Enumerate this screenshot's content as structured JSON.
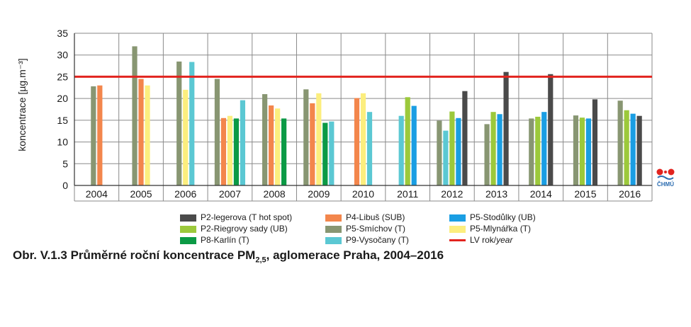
{
  "chart_data": {
    "type": "bar",
    "title": "",
    "ylabel": "koncentrace [µg.m⁻³]",
    "xlabel": "",
    "ylim": [
      0,
      35
    ],
    "yticks": [
      0,
      5,
      10,
      15,
      20,
      25,
      30,
      35
    ],
    "grid": true,
    "legend_position": "bottom",
    "categories": [
      "2004",
      "2005",
      "2006",
      "2007",
      "2008",
      "2009",
      "2010",
      "2011",
      "2012",
      "2013",
      "2014",
      "2015",
      "2016"
    ],
    "series": [
      {
        "name": "P5-Smíchov (T)",
        "color": "#889672",
        "values": [
          22.8,
          32.0,
          28.5,
          24.5,
          21.0,
          22.1,
          null,
          null,
          14.9,
          14.1,
          15.4,
          16.1,
          19.5
        ]
      },
      {
        "name": "P4-Libuš (SUB)",
        "color": "#f3864c",
        "values": [
          23.0,
          24.5,
          null,
          15.5,
          18.4,
          18.9,
          20.1,
          null,
          null,
          null,
          null,
          null,
          null
        ]
      },
      {
        "name": "P5-Mlynářka (T)",
        "color": "#fcee7e",
        "values": [
          null,
          23.0,
          22.0,
          16.0,
          17.7,
          21.2,
          21.2,
          null,
          null,
          null,
          null,
          null,
          null
        ]
      },
      {
        "name": "P8-Karlín (T)",
        "color": "#0b9a45",
        "values": [
          null,
          null,
          null,
          15.4,
          15.4,
          14.4,
          null,
          null,
          null,
          null,
          null,
          null,
          null
        ]
      },
      {
        "name": "P9-Vysočany (T)",
        "color": "#5bc8d3",
        "values": [
          null,
          null,
          28.4,
          19.6,
          null,
          14.7,
          16.9,
          16.0,
          12.6,
          null,
          null,
          null,
          null
        ]
      },
      {
        "name": "P2-Riegrovy sady (UB)",
        "color": "#9cc93b",
        "values": [
          null,
          null,
          null,
          null,
          null,
          null,
          null,
          20.3,
          17.0,
          16.9,
          15.8,
          15.6,
          17.3
        ]
      },
      {
        "name": "P5-Stodůlky (UB)",
        "color": "#1a9ee3",
        "values": [
          null,
          null,
          null,
          null,
          null,
          null,
          null,
          18.3,
          15.5,
          16.4,
          16.9,
          15.4,
          16.5
        ]
      },
      {
        "name": "P2-legerova (T hot spot)",
        "color": "#4a4a4a",
        "values": [
          null,
          null,
          null,
          null,
          null,
          null,
          null,
          null,
          21.7,
          26.1,
          25.6,
          19.8,
          16.0
        ]
      }
    ],
    "annotations": [
      {
        "label": "LV rok/year",
        "y": 25,
        "color": "#e2241f"
      }
    ]
  },
  "legend": [
    {
      "label": "P2-legerova (T hot spot)",
      "color": "#4a4a4a",
      "kind": "box"
    },
    {
      "label": "P4-Libuš (SUB)",
      "color": "#f3864c",
      "kind": "box"
    },
    {
      "label": "P5-Stodůlky (UB)",
      "color": "#1a9ee3",
      "kind": "box"
    },
    {
      "label": "P2-Riegrovy sady (UB)",
      "color": "#9cc93b",
      "kind": "box"
    },
    {
      "label": "P5-Smíchov (T)",
      "color": "#889672",
      "kind": "box"
    },
    {
      "label": "P5-Mlynářka (T)",
      "color": "#fcee7e",
      "kind": "box"
    },
    {
      "label": "P8-Karlín (T)",
      "color": "#0b9a45",
      "kind": "box"
    },
    {
      "label": "P9-Vysočany (T)",
      "color": "#5bc8d3",
      "kind": "box"
    },
    {
      "label_prefix": "LV rok/",
      "label_italic": "year",
      "color": "#e2241f",
      "kind": "line"
    }
  ],
  "caption": {
    "prefix": "Obr. V.1.3  Průměrné roční koncentrace PM",
    "subscript": "2,5",
    "suffix": ", aglomerace Praha, 2004–2016"
  },
  "logo": {
    "text": "ČHMÚ"
  },
  "colors": {
    "grid": "#8a8a8a",
    "axis": "#333333",
    "limit_line": "#e2241f",
    "logo_red": "#e2241f",
    "logo_blue": "#2b6cb0"
  }
}
